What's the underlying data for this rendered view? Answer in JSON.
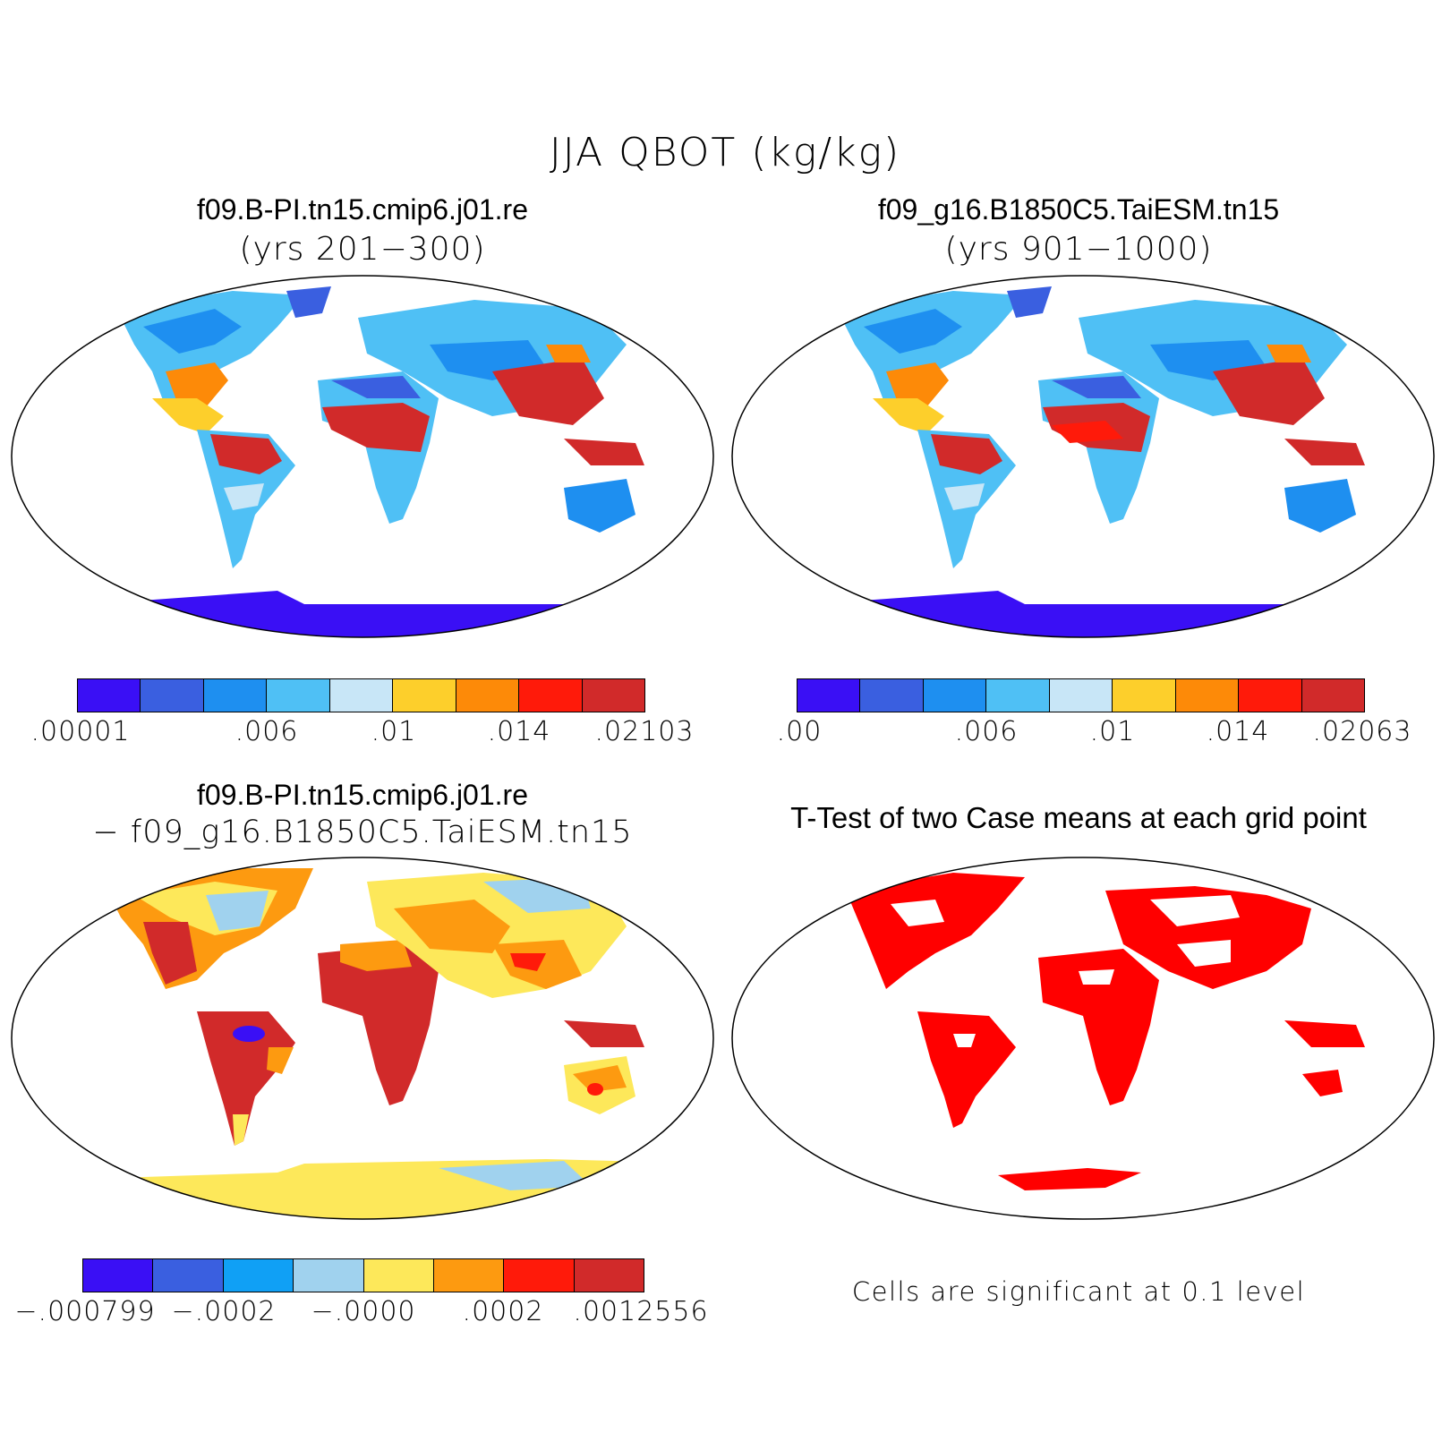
{
  "title": "JJA QBOT (kg/kg)",
  "panels": {
    "case1": {
      "name": "f09.B-PI.tn15.cmip6.j01.re",
      "years": "(yrs 201−300)",
      "colorbar": {
        "colors": [
          "#3a0ff5",
          "#3a5fe0",
          "#1e8ff0",
          "#4fc0f5",
          "#c8e6f7",
          "#fdcf2b",
          "#fd8a08",
          "#ff1a0a",
          "#d12a2a"
        ],
        "labels": [
          ".00001",
          ".006",
          ".01",
          ".014",
          ".02103"
        ]
      }
    },
    "case2": {
      "name": "f09_g16.B1850C5.TaiESM.tn15",
      "years": "(yrs 901−1000)",
      "colorbar": {
        "colors": [
          "#3a0ff5",
          "#3a5fe0",
          "#1e8ff0",
          "#4fc0f5",
          "#c8e6f7",
          "#fdcf2b",
          "#fd8a08",
          "#ff1a0a",
          "#d12a2a"
        ],
        "labels": [
          ".00",
          ".006",
          ".01",
          ".014",
          ".02063"
        ]
      }
    },
    "diff": {
      "line1": "f09.B-PI.tn15.cmip6.j01.re",
      "line2": "− f09_g16.B1850C5.TaiESM.tn15",
      "colorbar": {
        "colors": [
          "#3a0ff5",
          "#3a5fe0",
          "#10a0f5",
          "#a0d2ee",
          "#fde85a",
          "#fd9a10",
          "#ff1a0a",
          "#d12a2a"
        ],
        "labels": [
          "−.000799",
          "−.0002",
          "−.0000",
          ".0002",
          ".0012556"
        ]
      }
    },
    "ttest": {
      "title": "T-Test of two Case means at each grid point",
      "note": "Cells are significant at 0.1 level",
      "color": "#ff0000"
    }
  }
}
